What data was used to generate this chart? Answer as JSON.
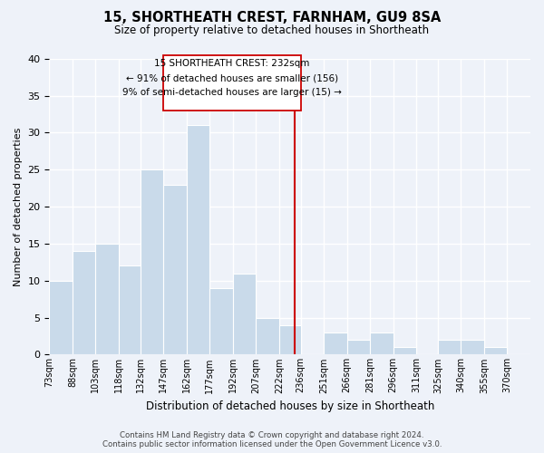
{
  "title": "15, SHORTHEATH CREST, FARNHAM, GU9 8SA",
  "subtitle": "Size of property relative to detached houses in Shortheath",
  "xlabel": "Distribution of detached houses by size in Shortheath",
  "ylabel": "Number of detached properties",
  "bin_labels": [
    "73sqm",
    "88sqm",
    "103sqm",
    "118sqm",
    "132sqm",
    "147sqm",
    "162sqm",
    "177sqm",
    "192sqm",
    "207sqm",
    "222sqm",
    "236sqm",
    "251sqm",
    "266sqm",
    "281sqm",
    "296sqm",
    "311sqm",
    "325sqm",
    "340sqm",
    "355sqm",
    "370sqm"
  ],
  "bin_edges": [
    73,
    88,
    103,
    118,
    132,
    147,
    162,
    177,
    192,
    207,
    222,
    236,
    251,
    266,
    281,
    296,
    311,
    325,
    340,
    355,
    370,
    385
  ],
  "counts": [
    10,
    14,
    15,
    12,
    25,
    23,
    31,
    9,
    11,
    5,
    4,
    0,
    3,
    2,
    3,
    1,
    0,
    2,
    2,
    1,
    0
  ],
  "bar_color": "#c9daea",
  "reference_line_x": 232,
  "reference_line_color": "#cc0000",
  "annotation_title": "15 SHORTHEATH CREST: 232sqm",
  "annotation_line1": "← 91% of detached houses are smaller (156)",
  "annotation_line2": "9% of semi-detached houses are larger (15) →",
  "ylim": [
    0,
    40
  ],
  "yticks": [
    0,
    5,
    10,
    15,
    20,
    25,
    30,
    35,
    40
  ],
  "footer1": "Contains HM Land Registry data © Crown copyright and database right 2024.",
  "footer2": "Contains public sector information licensed under the Open Government Licence v3.0.",
  "bg_color": "#eef2f9",
  "plot_bg_color": "#eef2f9"
}
